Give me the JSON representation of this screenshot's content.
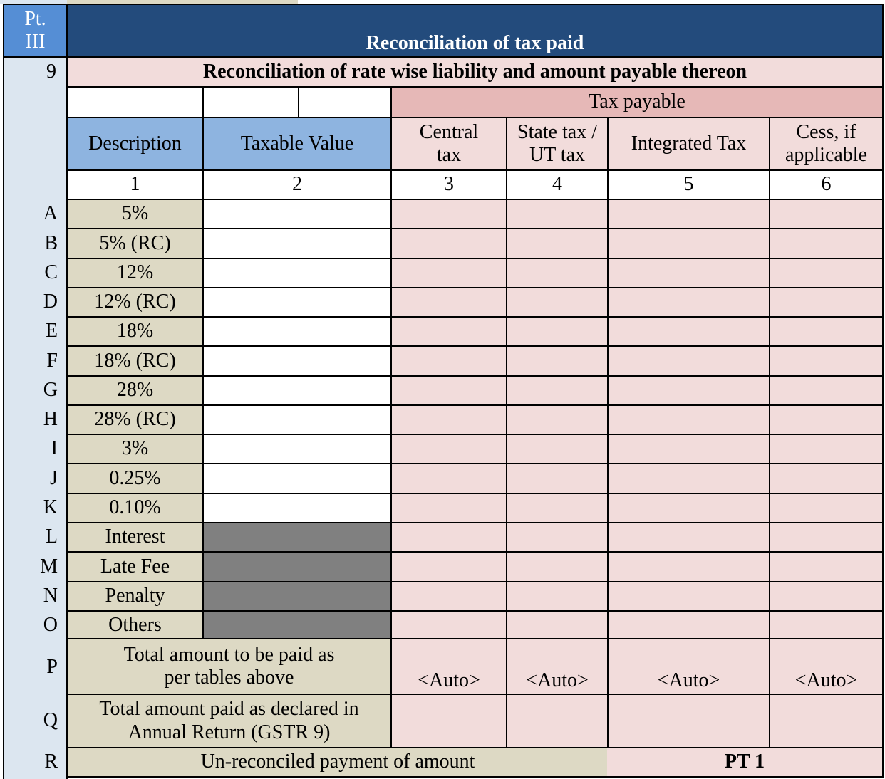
{
  "part": {
    "label_line1": "Pt.",
    "label_line2": "III",
    "title": "Reconciliation of tax paid"
  },
  "section": {
    "number": "9",
    "title": "Reconciliation of rate wise liability and amount payable thereon"
  },
  "tax_payable_group": "Tax payable",
  "columns": [
    {
      "header": "Description",
      "number": "1"
    },
    {
      "header": "Taxable Value",
      "number": "2"
    },
    {
      "header": "Central tax",
      "number": "3"
    },
    {
      "header": "State tax / UT tax",
      "number": "4"
    },
    {
      "header": "Integrated Tax",
      "number": "5"
    },
    {
      "header": "Cess, if applicable",
      "number": "6"
    }
  ],
  "rows": [
    {
      "letter": "A",
      "description": "5%"
    },
    {
      "letter": "B",
      "description": "5% (RC)"
    },
    {
      "letter": "C",
      "description": "12%"
    },
    {
      "letter": "D",
      "description": "12% (RC)"
    },
    {
      "letter": "E",
      "description": "18%"
    },
    {
      "letter": "F",
      "description": "18% (RC)"
    },
    {
      "letter": "G",
      "description": "28%"
    },
    {
      "letter": "H",
      "description": "28% (RC)"
    },
    {
      "letter": "I",
      "description": "3%"
    },
    {
      "letter": "J",
      "description": "0.25%"
    },
    {
      "letter": "K",
      "description": "0.10%"
    },
    {
      "letter": "L",
      "description": "Interest"
    },
    {
      "letter": "M",
      "description": "Late Fee"
    },
    {
      "letter": "N",
      "description": "Penalty"
    },
    {
      "letter": "O",
      "description": "Others"
    }
  ],
  "total_rows": {
    "P": {
      "letter": "P",
      "description": "Total amount to be paid as per tables above",
      "central": "<Auto>",
      "state": "<Auto>",
      "integrated": "<Auto>",
      "cess": "<Auto>"
    },
    "Q": {
      "letter": "Q",
      "description": "Total amount paid as declared in Annual Return (GSTR 9)"
    },
    "R": {
      "letter": "R",
      "description": "Un-reconciled payment of amount",
      "value": "PT 1"
    }
  },
  "colors": {
    "navy": "#234b7c",
    "header_blue": "#8eb4e0",
    "pink": "#f2dcdb",
    "tan": "#ddd9c4",
    "grey": "#808080",
    "left_strip": "#dce6f0"
  }
}
